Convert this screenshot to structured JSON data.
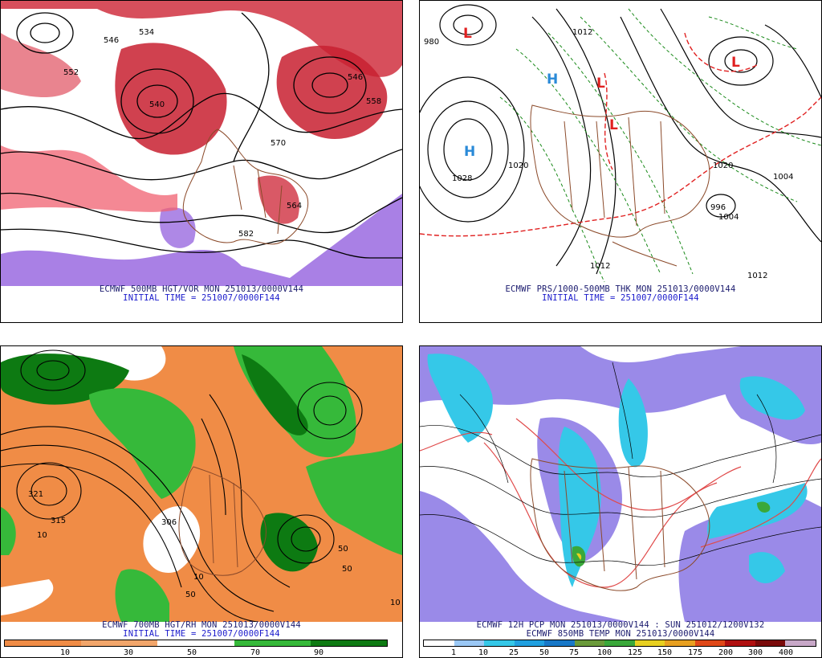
{
  "panels": [
    {
      "id": "tl",
      "caption1": "ECMWF 500MB HGT/VOR MON 251013/0000V144",
      "caption2": "INITIAL TIME = 251007/0000F144",
      "contour_labels": [
        "546",
        "534",
        "552",
        "558",
        "570",
        "582",
        "564",
        "540",
        "546"
      ]
    },
    {
      "id": "tr",
      "caption1": "ECMWF PRS/1000-500MB THK MON 251013/0000V144",
      "caption2": "INITIAL TIME = 251007/0000F144",
      "contour_labels": [
        "1028",
        "1020",
        "1012",
        "1004",
        "996",
        "980",
        "1020",
        "1004",
        "1012",
        "1012"
      ],
      "pressure_centers": [
        "H",
        "H",
        "L",
        "L",
        "L",
        "L"
      ]
    },
    {
      "id": "bl",
      "caption1": "ECMWF 700MB HGT/RH MON 251013/0000V144",
      "caption2": "INITIAL TIME = 251007/0000F144",
      "contour_labels": [
        "321",
        "315",
        "10",
        "50",
        "10",
        "50",
        "306",
        "10",
        "50"
      ],
      "colorbar_ticks": [
        "10",
        "30",
        "50",
        "70",
        "90"
      ],
      "colors": [
        "#f08c46",
        "#f2a66b",
        "#ffffff",
        "#36b93a",
        "#0d7a12"
      ]
    },
    {
      "id": "br",
      "caption1": "ECMWF 12H PCP MON 251013/0000V144 : SUN 251012/1200V132",
      "caption2": "ECMWF 850MB TEMP MON 251013/0000V144",
      "colorbar_ticks": [
        "1",
        "10",
        "25",
        "50",
        "75",
        "100",
        "125",
        "150",
        "175",
        "200",
        "300",
        "400"
      ],
      "colors": [
        "#ffffff",
        "#9bc8f5",
        "#35c8e8",
        "#20a0e0",
        "#1878c8",
        "#6a9a3a",
        "#3aa83a",
        "#e8d020",
        "#e8a020",
        "#e04818",
        "#b01010",
        "#7a0a0a",
        "#c8a8c8"
      ]
    }
  ]
}
